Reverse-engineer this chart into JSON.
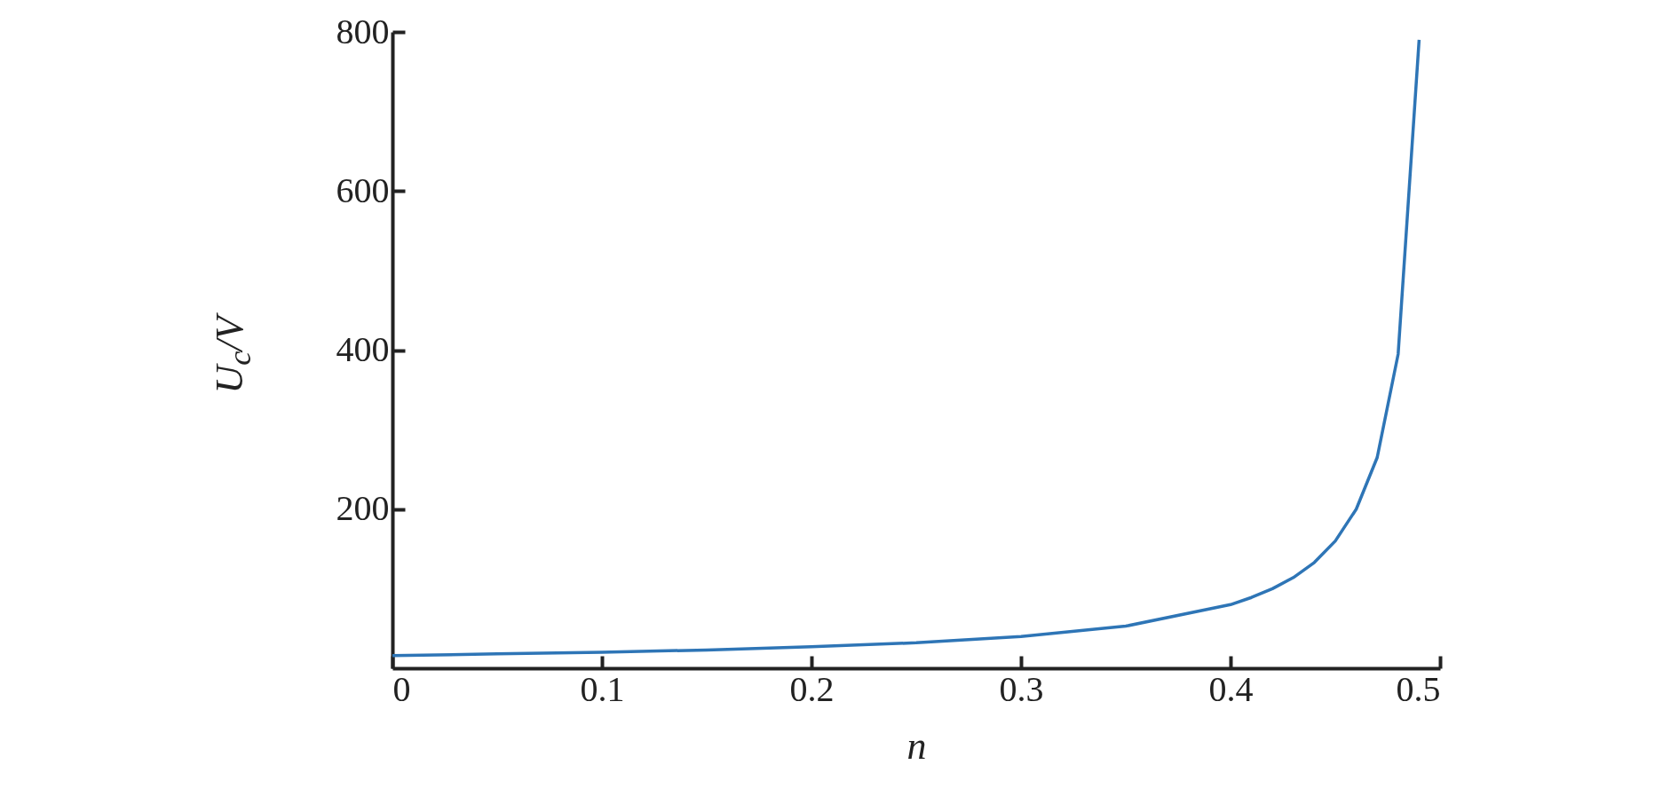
{
  "chart_data": {
    "type": "line",
    "xlabel": "n",
    "ylabel": "U$_{c}$/V",
    "x": [
      0,
      0.05,
      0.1,
      0.15,
      0.2,
      0.25,
      0.3,
      0.35,
      0.4,
      0.41,
      0.42,
      0.43,
      0.44,
      0.45,
      0.46,
      0.47,
      0.48,
      0.49
    ],
    "series": [
      {
        "color": "#2e75b6",
        "values": [
          16,
          18,
          20,
          23,
          27,
          32,
          40,
          53,
          80,
          89,
          100,
          114,
          133,
          160,
          200,
          265,
          395,
          790
        ]
      }
    ],
    "xlim": [
      0,
      0.5
    ],
    "xticks": [
      0,
      0.1,
      0.2,
      0.3,
      0.4,
      0.5
    ],
    "ylim": [
      0,
      800
    ],
    "yticks": [
      200,
      400,
      600,
      800
    ],
    "grid": false,
    "marker": "none",
    "line_style": "solid"
  }
}
